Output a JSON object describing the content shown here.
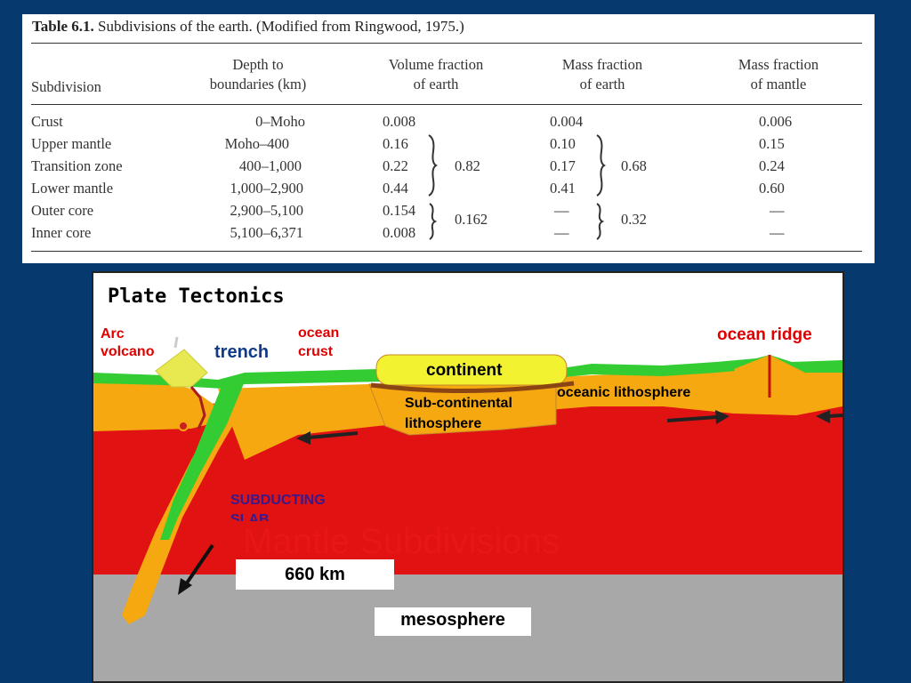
{
  "table": {
    "caption_bold": "Table 6.1.",
    "caption_rest": "Subdivisions of the earth. (Modified from Ringwood, 1975.)",
    "headers": {
      "subdivision": "Subdivision",
      "depth_1": "Depth to",
      "depth_2": "boundaries (km)",
      "vol_1": "Volume fraction",
      "vol_2": "of earth",
      "mass_1": "Mass fraction",
      "mass_2": "of earth",
      "mantle_1": "Mass fraction",
      "mantle_2": "of mantle"
    },
    "rows": [
      {
        "name": "Crust",
        "depth": "0–Moho",
        "vol": "0.008",
        "mass": "0.004",
        "mantle": "0.006"
      },
      {
        "name": "Upper mantle",
        "depth": "Moho–400",
        "vol": "0.16",
        "mass": "0.10",
        "mantle": "0.15"
      },
      {
        "name": "Transition zone",
        "depth": "400–1,000",
        "vol": "0.22",
        "mass": "0.17",
        "mantle": "0.24"
      },
      {
        "name": "Lower mantle",
        "depth": "1,000–2,900",
        "vol": "0.44",
        "mass": "0.41",
        "mantle": "0.60"
      },
      {
        "name": "Outer core",
        "depth": "2,900–5,100",
        "vol": "0.154",
        "mass": "—",
        "mantle": "—"
      },
      {
        "name": "Inner core",
        "depth": "5,100–6,371",
        "vol": "0.008",
        "mass": "—",
        "mantle": "—"
      }
    ],
    "groups": {
      "mantle_vol": "0.82",
      "mantle_mass": "0.68",
      "core_vol": "0.162",
      "core_mass": "0.32"
    }
  },
  "diagram": {
    "title": "Plate Tectonics",
    "labels": {
      "arc_volcano_1": "Arc",
      "arc_volcano_2": "volcano",
      "trench": "trench",
      "ocean_crust_1": "ocean",
      "ocean_crust_2": "crust",
      "continent": "continent",
      "ocean_ridge": "ocean ridge",
      "oceanic_lithosphere": "oceanic lithosphere",
      "sub_continental_1": "Sub-continental",
      "sub_continental_2": "lithosphere",
      "subducting_1": "SUBDUCTING",
      "subducting_2": "SLAB",
      "overlay_title": "Mantle Subdivisions",
      "depth_660": "660 km",
      "mesosphere": "mesosphere"
    },
    "colors": {
      "mantle": "#e01212",
      "lithosphere": "#f5a810",
      "crust": "#33cc33",
      "continent": "#f2f230",
      "mesosphere": "#a8a8a8",
      "label_red": "#e00000",
      "label_blue": "#123a8a"
    }
  }
}
